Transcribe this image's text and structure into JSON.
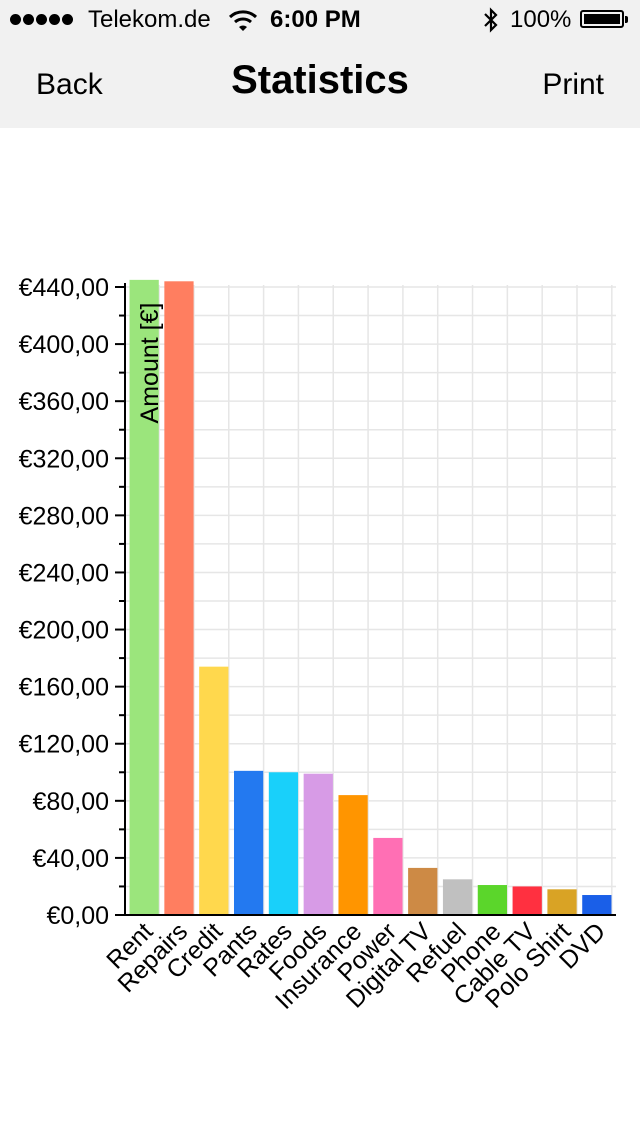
{
  "status_bar": {
    "carrier": "Telekom.de",
    "time": "6:00 PM",
    "battery": "100%",
    "icons": [
      "signal-dots-icon",
      "wifi-icon",
      "bluetooth-icon",
      "battery-icon"
    ]
  },
  "nav": {
    "back_label": "Back",
    "title": "Statistics",
    "print_label": "Print"
  },
  "chart_data": {
    "type": "bar",
    "ylabel": "Amount [€]",
    "ylim": [
      0,
      440
    ],
    "y_ticks": [
      "€0,00",
      "€40,00",
      "€80,00",
      "€120,00",
      "€160,00",
      "€200,00",
      "€240,00",
      "€280,00",
      "€320,00",
      "€360,00",
      "€400,00",
      "€440,00"
    ],
    "categories": [
      "Rent",
      "Repairs",
      "Credit",
      "Pants",
      "Rates",
      "Foods",
      "Insurance",
      "Power",
      "Digital TV",
      "Refuel",
      "Phone",
      "Cable TV",
      "Polo Shirt",
      "DVD"
    ],
    "values": [
      445,
      444,
      174,
      101,
      100,
      99,
      84,
      54,
      33,
      25,
      21,
      20,
      18,
      14
    ],
    "colors": [
      "#9be57c",
      "#ff7e60",
      "#ffd84d",
      "#2379f0",
      "#19d0fa",
      "#d79be6",
      "#ff9500",
      "#ff6fb4",
      "#cd8a45",
      "#c0c0c0",
      "#5bd62b",
      "#ff3040",
      "#d9a325",
      "#1a5fe8"
    ],
    "grid": true
  }
}
